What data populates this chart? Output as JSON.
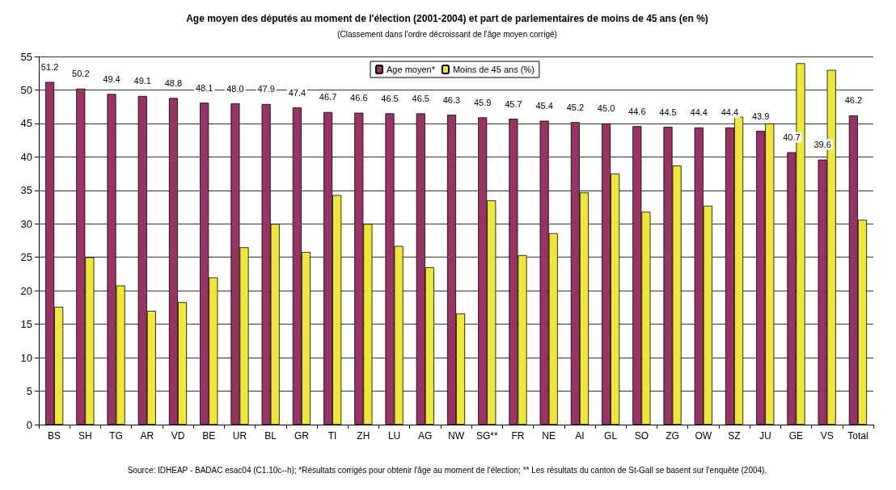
{
  "chart_data": {
    "type": "bar",
    "title": "Age moyen des députés au moment de l'élection (2001-2004) et part de parlementaires de moins de 45 ans (en %)",
    "subtitle": "(Classement dans l'ordre décroissant de l'âge moyen corrigé)",
    "categories": [
      "BS",
      "SH",
      "TG",
      "AR",
      "VD",
      "BE",
      "UR",
      "BL",
      "GR",
      "TI",
      "ZH",
      "LU",
      "AG",
      "NW",
      "SG**",
      "FR",
      "NE",
      "AI",
      "GL",
      "SO",
      "ZG",
      "OW",
      "SZ",
      "JU",
      "GE",
      "VS",
      "Total"
    ],
    "series": [
      {
        "name": "Age moyen*",
        "color": "#993366",
        "values": [
          51.2,
          50.2,
          49.4,
          49.1,
          48.8,
          48.1,
          48.0,
          47.9,
          47.4,
          46.7,
          46.6,
          46.5,
          46.5,
          46.3,
          45.9,
          45.7,
          45.4,
          45.2,
          45.0,
          44.6,
          44.5,
          44.4,
          44.4,
          43.9,
          40.7,
          39.6,
          46.2
        ],
        "value_labels": [
          "51.2",
          "50.2",
          "49.4",
          "49.1",
          "48.8",
          "48.1",
          "48.0",
          "47.9",
          "47.4",
          "46.7",
          "46.6",
          "46.5",
          "46.5",
          "46.3",
          "45.9",
          "45.7",
          "45.4",
          "45.2",
          "45.0",
          "44.6",
          "44.5",
          "44.4",
          "44.4",
          "43.9",
          "40.7",
          "39.6",
          "46.2"
        ]
      },
      {
        "name": "Moins de 45 ans (%)",
        "color": "#f0e838",
        "values": [
          17.6,
          25.0,
          20.8,
          17.0,
          18.3,
          22.0,
          26.5,
          30.0,
          25.8,
          34.3,
          30.0,
          26.7,
          23.5,
          16.6,
          33.5,
          25.3,
          28.6,
          34.7,
          37.5,
          31.8,
          38.7,
          32.7,
          46.0,
          45.0,
          54.0,
          53.0,
          30.6
        ]
      }
    ],
    "ylim": [
      0,
      55
    ],
    "yticks": [
      0,
      5,
      10,
      15,
      20,
      25,
      30,
      35,
      40,
      45,
      50,
      55
    ],
    "grid": "y",
    "legend": "top",
    "annotations": [
      "Source: IDHEAP - BADAC esac04 (C1.10c--h); *Résultats corrigés pour obtenir l'âge au moment de l'élection; ** Les résultats du canton de St-Gall se basent sur l'enquête (2004)."
    ]
  }
}
